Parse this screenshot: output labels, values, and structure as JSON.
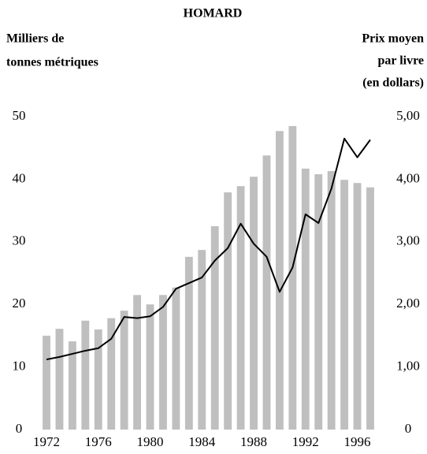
{
  "chart_data": {
    "type": "bar-line",
    "title": "HOMARD",
    "ylabel": [
      "Milliers de",
      "tonnes métriques"
    ],
    "y2label": [
      "Prix moyen",
      "par livre",
      "(en dollars)"
    ],
    "x": [
      1972,
      1973,
      1974,
      1975,
      1976,
      1977,
      1978,
      1979,
      1980,
      1981,
      1982,
      1983,
      1984,
      1985,
      1986,
      1987,
      1988,
      1989,
      1990,
      1991,
      1992,
      1993,
      1994,
      1995,
      1996,
      1997
    ],
    "xlim": [
      1971.5,
      1997.5
    ],
    "xticks": [
      1972,
      1976,
      1980,
      1984,
      1988,
      1992,
      1996
    ],
    "ylim": [
      0,
      50
    ],
    "yticks": [
      0,
      10,
      20,
      30,
      40,
      50
    ],
    "y2lim": [
      0,
      5
    ],
    "y2ticks": [
      0,
      {
        "value": 1,
        "label": "1,00"
      },
      {
        "value": 2,
        "label": "2,00"
      },
      {
        "value": 3,
        "label": "3,00"
      },
      {
        "value": 4,
        "label": "4,00"
      },
      {
        "value": 5,
        "label": "5,00"
      }
    ],
    "series": [
      {
        "type": "bar",
        "color": "#bfbfbf",
        "values": [
          15.0,
          16.1,
          14.1,
          17.4,
          16.0,
          17.8,
          19.0,
          21.5,
          20.0,
          21.5,
          22.7,
          27.6,
          28.7,
          32.5,
          37.9,
          38.9,
          40.4,
          43.8,
          47.7,
          48.5,
          41.7,
          40.8,
          41.3,
          39.9,
          39.4,
          38.7
        ]
      },
      {
        "type": "line",
        "color": "#000000",
        "axis": "y2",
        "values": [
          1.12,
          1.16,
          1.21,
          1.26,
          1.3,
          1.45,
          1.8,
          1.78,
          1.81,
          1.96,
          2.25,
          2.34,
          2.43,
          2.7,
          2.9,
          3.29,
          2.97,
          2.76,
          2.2,
          2.59,
          3.44,
          3.3,
          3.85,
          4.65,
          4.35,
          4.63
        ]
      }
    ]
  }
}
